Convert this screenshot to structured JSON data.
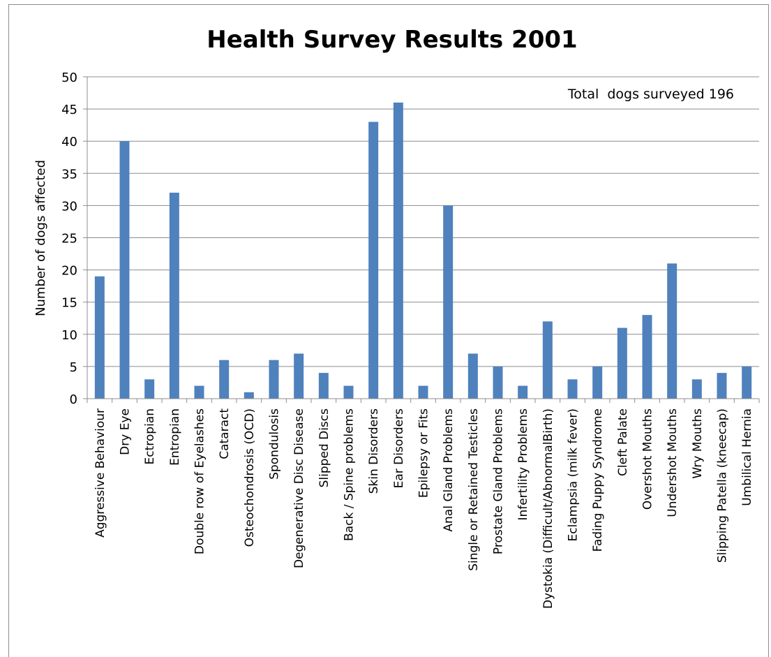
{
  "chart_data": {
    "type": "bar",
    "title": "Health Survey Results 2001",
    "ylabel": "Number of dogs affected",
    "xlabel": "",
    "annotation": "Total  dogs surveyed 196",
    "ylim": [
      0,
      50
    ],
    "yticks": [
      0,
      5,
      10,
      15,
      20,
      25,
      30,
      35,
      40,
      45,
      50
    ],
    "grid": true,
    "legend": "none",
    "bar_color": "#4f81bd",
    "categories": [
      "Aggressive Behaviour",
      "Dry Eye",
      "Ectropian",
      "Entropian",
      "Double row of Eyelashes",
      "Cataract",
      "Osteochondrosis (OCD)",
      "Spondulosis",
      "Degenerative Disc Disease",
      "Slipped Discs",
      "Back / Spine problems",
      "Skin Disorders",
      "Ear Disorders",
      "Epilepsy or Fits",
      "Anal Gland Problems",
      "Single or Retained Testicles",
      "Prostate Gland Problems",
      "Infertility Problems",
      "Dystokia (Difficult/AbnormalBirth)",
      "Eclampsia (milk fever)",
      "Fading Puppy Syndrome",
      "Cleft Palate",
      "Overshot Mouths",
      "Undershot Mouths",
      "Wry Mouths",
      "Slipping Patella (kneecap)",
      "Umbilical Hernia"
    ],
    "values": [
      19,
      40,
      3,
      32,
      2,
      6,
      1,
      6,
      7,
      4,
      2,
      43,
      46,
      2,
      30,
      7,
      5,
      2,
      12,
      3,
      5,
      11,
      13,
      21,
      3,
      4,
      5
    ]
  }
}
